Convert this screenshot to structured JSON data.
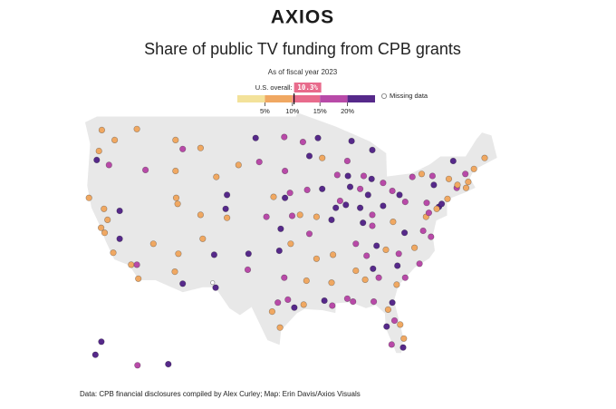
{
  "logo": "AXIOS",
  "title": "Share of public TV funding from CPB grants",
  "subtitle": "As of fiscal year 2023",
  "legend": {
    "overall_label": "U.S. overall:",
    "overall": {
      "value": 10.3,
      "label": "10.3%"
    },
    "range": [
      0,
      25
    ],
    "ticks": [
      {
        "value": 5,
        "label": "5%"
      },
      {
        "value": 10,
        "label": "10%"
      },
      {
        "value": 15,
        "label": "15%"
      },
      {
        "value": 20,
        "label": "20%"
      }
    ],
    "colors": [
      "#f3e29a",
      "#f0a862",
      "#e86b8c",
      "#b84aa8",
      "#56298a"
    ],
    "missing_label": "Missing data",
    "missing_color": "#ffffff"
  },
  "stations": [
    [
      -122.3,
      47.6,
      1
    ],
    [
      -117.4,
      47.7,
      1
    ],
    [
      -120.5,
      46.6,
      1
    ],
    [
      -123,
      44.6,
      4
    ],
    [
      -122.7,
      45.5,
      1
    ],
    [
      -121.3,
      44.1,
      3
    ],
    [
      -116.2,
      43.6,
      3
    ],
    [
      -112,
      43.5,
      1
    ],
    [
      -108.5,
      45.8,
      1
    ],
    [
      -111,
      45.7,
      3
    ],
    [
      -112,
      46.6,
      1
    ],
    [
      -124.1,
      40.8,
      1
    ],
    [
      -122.4,
      37.8,
      1
    ],
    [
      -121.5,
      38.6,
      1
    ],
    [
      -121.9,
      37.3,
      1
    ],
    [
      -119.8,
      36.7,
      4
    ],
    [
      -118.2,
      34.1,
      1
    ],
    [
      -117.2,
      32.7,
      1
    ],
    [
      -117.4,
      34.1,
      3
    ],
    [
      -122,
      39.7,
      1
    ],
    [
      -120.7,
      35.3,
      1
    ],
    [
      -119.8,
      39.5,
      4
    ],
    [
      -115.1,
      36.2,
      1
    ],
    [
      -111.9,
      40.8,
      1
    ],
    [
      -111.7,
      40.2,
      1
    ],
    [
      -112.1,
      33.4,
      1
    ],
    [
      -111,
      32.2,
      4
    ],
    [
      -111.6,
      35.2,
      1
    ],
    [
      -105,
      39.7,
      4
    ],
    [
      -104.8,
      38.8,
      1
    ],
    [
      -108.5,
      39.1,
      1
    ],
    [
      -104.8,
      41.1,
      4
    ],
    [
      -106.3,
      42.9,
      1
    ],
    [
      -106.6,
      35.1,
      4
    ],
    [
      -106.8,
      32.3,
      null
    ],
    [
      -108.2,
      36.7,
      1
    ],
    [
      -100.8,
      46.8,
      4
    ],
    [
      -96.8,
      46.9,
      3
    ],
    [
      -96.7,
      43.5,
      3
    ],
    [
      -103.2,
      44.1,
      1
    ],
    [
      -100.3,
      44.4,
      3
    ],
    [
      -96,
      41.3,
      3
    ],
    [
      -96.7,
      40.8,
      4
    ],
    [
      -98.3,
      40.9,
      1
    ],
    [
      -97.3,
      37.7,
      4
    ],
    [
      -95.7,
      39,
      3
    ],
    [
      -99.3,
      38.9,
      3
    ],
    [
      -97.5,
      35.5,
      4
    ],
    [
      -95.9,
      36.2,
      1
    ],
    [
      -101.8,
      35.2,
      4
    ],
    [
      -101.9,
      33.6,
      3
    ],
    [
      -106.4,
      31.8,
      4
    ],
    [
      -97.7,
      30.3,
      3
    ],
    [
      -98.5,
      29.4,
      1
    ],
    [
      -96.8,
      32.8,
      3
    ],
    [
      -95.4,
      29.8,
      4
    ],
    [
      -97.4,
      27.8,
      1
    ],
    [
      -94.1,
      30.1,
      1
    ],
    [
      -96.3,
      30.6,
      3
    ],
    [
      -93.3,
      45,
      4
    ],
    [
      -92.1,
      46.8,
      4
    ],
    [
      -94.2,
      46.4,
      3
    ],
    [
      -89.4,
      43.1,
      3
    ],
    [
      -87.9,
      43,
      4
    ],
    [
      -88,
      44.5,
      3
    ],
    [
      -91.5,
      44.8,
      1
    ],
    [
      -93.6,
      41.6,
      3
    ],
    [
      -91.5,
      41.7,
      4
    ],
    [
      -92.3,
      38.9,
      1
    ],
    [
      -90.2,
      38.6,
      4
    ],
    [
      -94.6,
      39.1,
      1
    ],
    [
      -93.3,
      37.2,
      3
    ],
    [
      -87.6,
      41.9,
      4
    ],
    [
      -89.6,
      39.8,
      4
    ],
    [
      -89,
      40.5,
      3
    ],
    [
      -88.2,
      40.1,
      4
    ],
    [
      -86.2,
      39.8,
      4
    ],
    [
      -86.2,
      41.7,
      3
    ],
    [
      -85.1,
      41.1,
      4
    ],
    [
      -83,
      42.3,
      3
    ],
    [
      -84.6,
      42.7,
      4
    ],
    [
      -85.7,
      43,
      3
    ],
    [
      -84.5,
      45.6,
      4
    ],
    [
      -87.4,
      46.5,
      4
    ],
    [
      -83,
      40,
      4
    ],
    [
      -81.7,
      41.5,
      3
    ],
    [
      -84.5,
      39.1,
      3
    ],
    [
      -80.7,
      41.1,
      4
    ],
    [
      -85.8,
      38.3,
      4
    ],
    [
      -84.5,
      38,
      3
    ],
    [
      -86.8,
      36.2,
      3
    ],
    [
      -90,
      35.1,
      1
    ],
    [
      -83.9,
      36,
      4
    ],
    [
      -85.3,
      35,
      3
    ],
    [
      -92.3,
      34.7,
      1
    ],
    [
      -90.2,
      32.3,
      1
    ],
    [
      -91.2,
      30.5,
      4
    ],
    [
      -90.1,
      30,
      3
    ],
    [
      -93.7,
      32.5,
      1
    ],
    [
      -86.8,
      33.5,
      1
    ],
    [
      -88,
      30.7,
      3
    ],
    [
      -85.5,
      32.6,
      1
    ],
    [
      -84.4,
      33.7,
      4
    ],
    [
      -81.1,
      32.1,
      1
    ],
    [
      -83.6,
      32.8,
      3
    ],
    [
      -81,
      34,
      4
    ],
    [
      -79.9,
      32.8,
      3
    ],
    [
      -80.8,
      35.2,
      3
    ],
    [
      -78.6,
      35.8,
      1
    ],
    [
      -77.9,
      34.2,
      3
    ],
    [
      -82.6,
      35.6,
      1
    ],
    [
      -81.7,
      30.3,
      4
    ],
    [
      -84.3,
      30.4,
      3
    ],
    [
      -87.2,
      30.4,
      3
    ],
    [
      -82.3,
      29.6,
      1
    ],
    [
      -81.4,
      28.5,
      3
    ],
    [
      -82.5,
      27.9,
      4
    ],
    [
      -80.1,
      26.7,
      1
    ],
    [
      -80.2,
      25.8,
      4
    ],
    [
      -81.8,
      26.1,
      3
    ],
    [
      -80.6,
      28.1,
      1
    ],
    [
      -77,
      38.9,
      1
    ],
    [
      -77.4,
      37.5,
      3
    ],
    [
      -80,
      37.3,
      4
    ],
    [
      -81.6,
      38.4,
      1
    ],
    [
      -79.9,
      40.4,
      3
    ],
    [
      -76.9,
      40.3,
      3
    ],
    [
      -75.2,
      39.9,
      4
    ],
    [
      -76.6,
      39.3,
      3
    ],
    [
      -74,
      40.7,
      1
    ],
    [
      -73.8,
      42.7,
      1
    ],
    [
      -76.1,
      43,
      3
    ],
    [
      -77.6,
      43.2,
      1
    ],
    [
      -78.9,
      42.9,
      3
    ],
    [
      -75.9,
      42.1,
      4
    ],
    [
      -71.1,
      42.4,
      1
    ],
    [
      -72.7,
      41.8,
      3
    ],
    [
      -71.4,
      41.8,
      1
    ],
    [
      -72.6,
      42.1,
      1
    ],
    [
      -73.2,
      44.5,
      4
    ],
    [
      -71.5,
      43.2,
      3
    ],
    [
      -70.3,
      43.7,
      1
    ],
    [
      -68.8,
      44.8,
      1
    ],
    [
      -75.5,
      39.7,
      1
    ],
    [
      -74.8,
      40.2,
      4
    ],
    [
      -76.3,
      36.9,
      3
    ],
    [
      -149.9,
      61.2,
      4
    ],
    [
      -147.7,
      64.8,
      4
    ],
    [
      -134.4,
      58.3,
      3
    ],
    [
      -157.9,
      21.3,
      4
    ]
  ],
  "source": "Data: CPB financial disclosures compiled by Alex Curley; Map: Erin Davis/Axios Visuals"
}
